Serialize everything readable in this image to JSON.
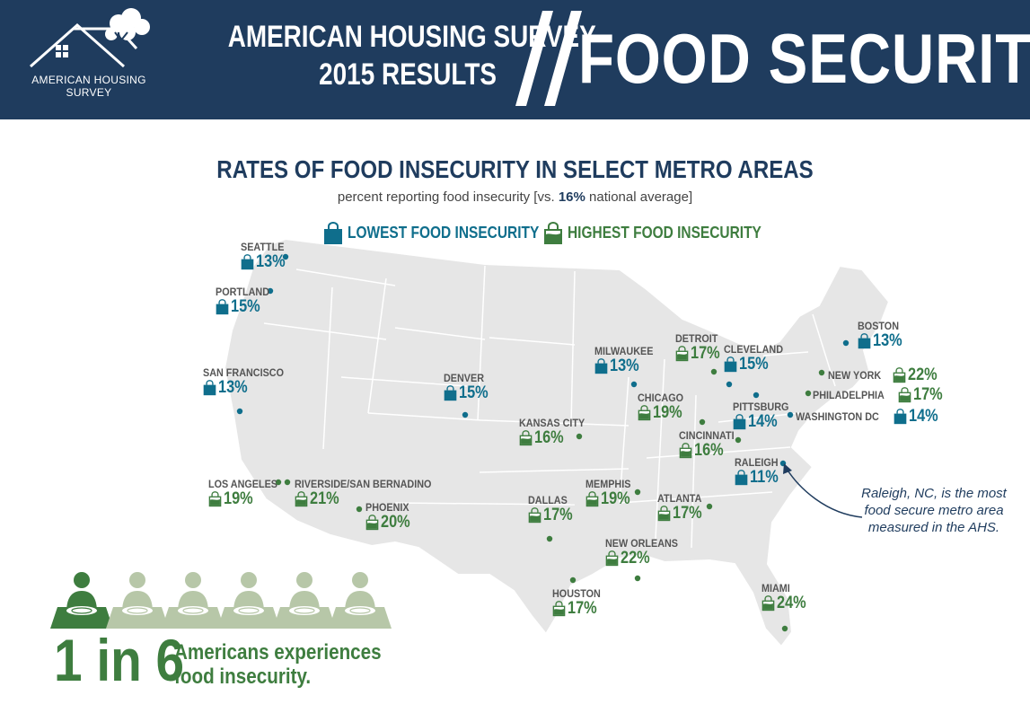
{
  "header": {
    "logo_text": "AMERICAN HOUSING SURVEY",
    "title_line1": "AMERICAN HOUSING SURVEY",
    "title_line2": "2015 RESULTS",
    "topic": "FOOD SECURITY",
    "background_color": "#1f3c5e"
  },
  "map": {
    "title": "RATES OF FOOD INSECURITY IN SELECT METRO AREAS",
    "subtitle_prefix": "percent reporting food insecurity [vs. ",
    "national_average": "16%",
    "subtitle_suffix": " national average]",
    "legend": {
      "low_label": "LOWEST FOOD INSECURITY",
      "high_label": "HIGHEST FOOD INSECURITY",
      "low_color": "#0f6e8c",
      "high_color": "#3e7d3f",
      "low_icon": "shopping-bag-empty-icon",
      "high_icon": "shopping-bag-full-icon"
    },
    "cities": [
      {
        "name": "SEATTLE",
        "value": "13%",
        "level": "low"
      },
      {
        "name": "PORTLAND",
        "value": "15%",
        "level": "low"
      },
      {
        "name": "SAN FRANCISCO",
        "value": "13%",
        "level": "low"
      },
      {
        "name": "LOS ANGELES",
        "value": "19%",
        "level": "high"
      },
      {
        "name": "RIVERSIDE/SAN BERNADINO",
        "value": "21%",
        "level": "high"
      },
      {
        "name": "PHOENIX",
        "value": "20%",
        "level": "high"
      },
      {
        "name": "DENVER",
        "value": "15%",
        "level": "low"
      },
      {
        "name": "KANSAS CITY",
        "value": "16%",
        "level": "high"
      },
      {
        "name": "DALLAS",
        "value": "17%",
        "level": "high"
      },
      {
        "name": "HOUSTON",
        "value": "17%",
        "level": "high"
      },
      {
        "name": "MEMPHIS",
        "value": "19%",
        "level": "high"
      },
      {
        "name": "NEW ORLEANS",
        "value": "22%",
        "level": "high"
      },
      {
        "name": "MILWAUKEE",
        "value": "13%",
        "level": "low"
      },
      {
        "name": "CHICAGO",
        "value": "19%",
        "level": "high"
      },
      {
        "name": "DETROIT",
        "value": "17%",
        "level": "high"
      },
      {
        "name": "CLEVELAND",
        "value": "15%",
        "level": "low"
      },
      {
        "name": "CINCINNATI",
        "value": "16%",
        "level": "high"
      },
      {
        "name": "PITTSBURG",
        "value": "14%",
        "level": "low"
      },
      {
        "name": "ATLANTA",
        "value": "17%",
        "level": "high"
      },
      {
        "name": "RALEIGH",
        "value": "11%",
        "level": "low"
      },
      {
        "name": "MIAMI",
        "value": "24%",
        "level": "high"
      },
      {
        "name": "BOSTON",
        "value": "13%",
        "level": "low"
      },
      {
        "name": "NEW YORK",
        "value": "22%",
        "level": "high"
      },
      {
        "name": "PHILADELPHIA",
        "value": "17%",
        "level": "high"
      },
      {
        "name": "WASHINGTON DC",
        "value": "14%",
        "level": "low"
      }
    ],
    "annotation": "Raleigh, NC, is the most food secure metro area measured in the AHS."
  },
  "stat": {
    "ratio": "1 in 6",
    "line1": "Americans experiences",
    "line2": "food insecurity.",
    "highlighted_people": 1,
    "total_people": 6,
    "person_icon": "person-with-plate-icon"
  }
}
